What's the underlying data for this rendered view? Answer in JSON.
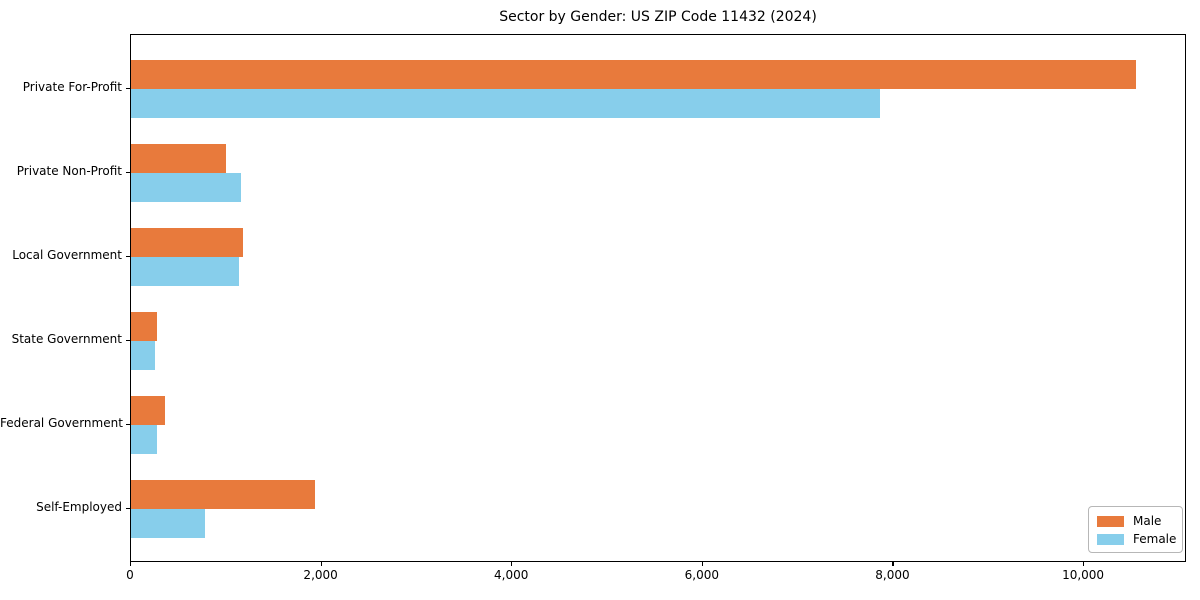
{
  "chart_data": {
    "type": "bar",
    "orientation": "horizontal",
    "title": "Sector by Gender: US ZIP Code 11432 (2024)",
    "categories": [
      "Private For-Profit",
      "Private Non-Profit",
      "Local Government",
      "State Government",
      "Federal Government",
      "Self-Employed"
    ],
    "series": [
      {
        "name": "Male",
        "color": "#e87a3c",
        "values": [
          10545,
          1000,
          1175,
          270,
          360,
          1935
        ]
      },
      {
        "name": "Female",
        "color": "#87ceeb",
        "values": [
          7860,
          1150,
          1130,
          255,
          275,
          780
        ]
      }
    ],
    "xlabel": "",
    "ylabel": "",
    "xlim": [
      0,
      11080
    ],
    "xticks": {
      "values": [
        0,
        2000,
        4000,
        6000,
        8000,
        10000
      ],
      "labels": [
        "0",
        "2,000",
        "4,000",
        "6,000",
        "8,000",
        "10,000"
      ]
    },
    "legend": {
      "position": "lower right",
      "entries": [
        "Male",
        "Female"
      ]
    },
    "grid": false,
    "background_color": "#ffffff",
    "text_color": "#000000"
  }
}
